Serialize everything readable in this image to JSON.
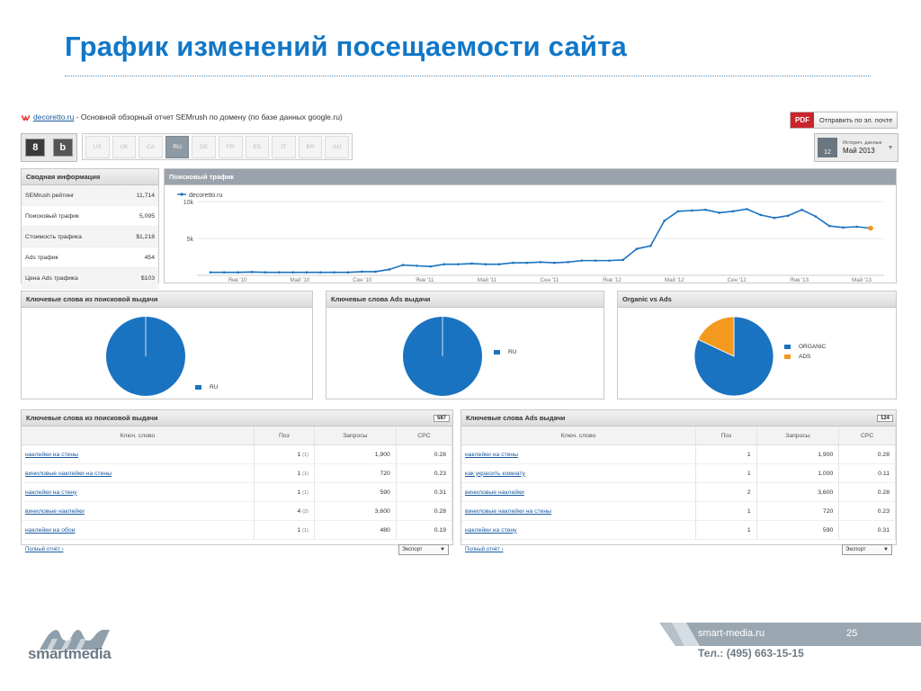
{
  "slide": {
    "title": "График изменений посещаемости сайта",
    "page_number": "25",
    "site": "smart-media.ru",
    "phone": "Тел.: (495) 663-15-15",
    "brand": "smartmedia"
  },
  "report": {
    "domain_link": "decoretto.ru",
    "description": " - Основной обзорный отчет SEMrush по домену (по базе данных google.ru)",
    "pdf_badge": "PDF",
    "pdf_button": "Отправить по эл. почте",
    "engines": [
      {
        "label": "8",
        "selected": true
      },
      {
        "label": "b",
        "selected": false
      }
    ],
    "databases": [
      "US",
      "UK",
      "CA",
      "RU",
      "DE",
      "FR",
      "ES",
      "IT",
      "BR",
      "AU"
    ],
    "active_database": "RU",
    "history": {
      "calendar_day": "12",
      "label": "Историч. данные",
      "value": "Май 2013"
    }
  },
  "summary": {
    "title": "Сводная информация",
    "rows": [
      {
        "label": "SEMrush рейтинг",
        "value": "11,714"
      },
      {
        "label": "Поисковый трафик",
        "value": "5,095"
      },
      {
        "label": "Стоимость трафика",
        "value": "$1,218"
      },
      {
        "label": "Ads трафик",
        "value": "454"
      },
      {
        "label": "Цена Ads трафика",
        "value": "$103"
      }
    ]
  },
  "traffic_panel": {
    "title": "Поисковый трафик"
  },
  "pie_panels": [
    {
      "title": "Ключевые слова из поисковой выдачи"
    },
    {
      "title": "Ключевые слова Ads выдачи"
    },
    {
      "title": "Organic vs Ads"
    }
  ],
  "keyword_tables": [
    {
      "title": "Ключевые слова из поисковой выдачи",
      "count": "587",
      "headers": [
        "Ключ. слово",
        "Поз",
        "Запросы",
        "CPC"
      ],
      "rows": [
        {
          "keyword": "наклейки на стены",
          "pos": "1",
          "prev": "(1)",
          "queries": "1,900",
          "cpc": "0.28"
        },
        {
          "keyword": "виниловые наклейки на стены",
          "pos": "1",
          "prev": "(1)",
          "queries": "720",
          "cpc": "0.23"
        },
        {
          "keyword": "наклейки на стену",
          "pos": "1",
          "prev": "(1)",
          "queries": "590",
          "cpc": "0.31"
        },
        {
          "keyword": "виниловые наклейки",
          "pos": "4",
          "prev": "(2)",
          "queries": "3,600",
          "cpc": "0.28"
        },
        {
          "keyword": "наклейки на обои",
          "pos": "1",
          "prev": "(1)",
          "queries": "480",
          "cpc": "0.19"
        }
      ],
      "full_report": "Полный отчёт ›",
      "export": "Экспорт"
    },
    {
      "title": "Ключевые слова Ads выдачи",
      "count": "124",
      "headers": [
        "Ключ. слово",
        "Поз",
        "Запросы",
        "CPC"
      ],
      "rows": [
        {
          "keyword": "наклейки на стены",
          "pos": "1",
          "prev": "",
          "queries": "1,900",
          "cpc": "0.28"
        },
        {
          "keyword": "как украсить комнату",
          "pos": "1",
          "prev": "",
          "queries": "1,000",
          "cpc": "0.11"
        },
        {
          "keyword": "виниловые наклейки",
          "pos": "2",
          "prev": "",
          "queries": "3,600",
          "cpc": "0.28"
        },
        {
          "keyword": "виниловые наклейки на стены",
          "pos": "1",
          "prev": "",
          "queries": "720",
          "cpc": "0.23"
        },
        {
          "keyword": "наклейки на стену",
          "pos": "1",
          "prev": "",
          "queries": "590",
          "cpc": "0.31"
        }
      ],
      "full_report": "Полный отчёт ›",
      "export": "Экспорт"
    }
  ],
  "colors": {
    "title": "#1177c7",
    "primary": "#1a73c0",
    "secondary": "#f39a1e",
    "endpoint": "#f39a1e"
  },
  "chart_data": [
    {
      "type": "line",
      "series": [
        {
          "name": "decoretto.ru",
          "values": [
            400,
            400,
            400,
            450,
            400,
            400,
            400,
            400,
            400,
            400,
            400,
            500,
            500,
            800,
            1400,
            1300,
            1200,
            1500,
            1500,
            1600,
            1500,
            1500,
            1700,
            1700,
            1800,
            1700,
            1800,
            2000,
            2000,
            2000,
            2100,
            3600,
            4000,
            7400,
            8700,
            8800,
            8900,
            8500,
            8700,
            9000,
            8200,
            7800,
            8100,
            8900,
            8000,
            6700,
            6500,
            6600,
            6400
          ]
        }
      ],
      "ytick_labels": [
        "10k",
        "5k"
      ],
      "yticks": [
        10000,
        5000
      ],
      "ylim": [
        0,
        11000
      ],
      "xtick_labels": [
        "Янв '10",
        "Май '10",
        "Сен '10",
        "Янв '11",
        "Май '11",
        "Сен '11",
        "Янв '12",
        "Май '12",
        "Сен '12",
        "Янв '13",
        "Май '13"
      ],
      "grid": true,
      "legend": "top-left"
    },
    {
      "type": "pie",
      "labels": [
        "RU"
      ],
      "values": [
        100
      ],
      "colors": [
        "#1a73c0"
      ]
    },
    {
      "type": "pie",
      "labels": [
        "RU"
      ],
      "values": [
        100
      ],
      "colors": [
        "#1a73c0"
      ]
    },
    {
      "type": "pie",
      "labels": [
        "ORGANIC",
        "ADS"
      ],
      "values": [
        82,
        18
      ],
      "colors": [
        "#1a73c0",
        "#f39a1e"
      ]
    }
  ]
}
